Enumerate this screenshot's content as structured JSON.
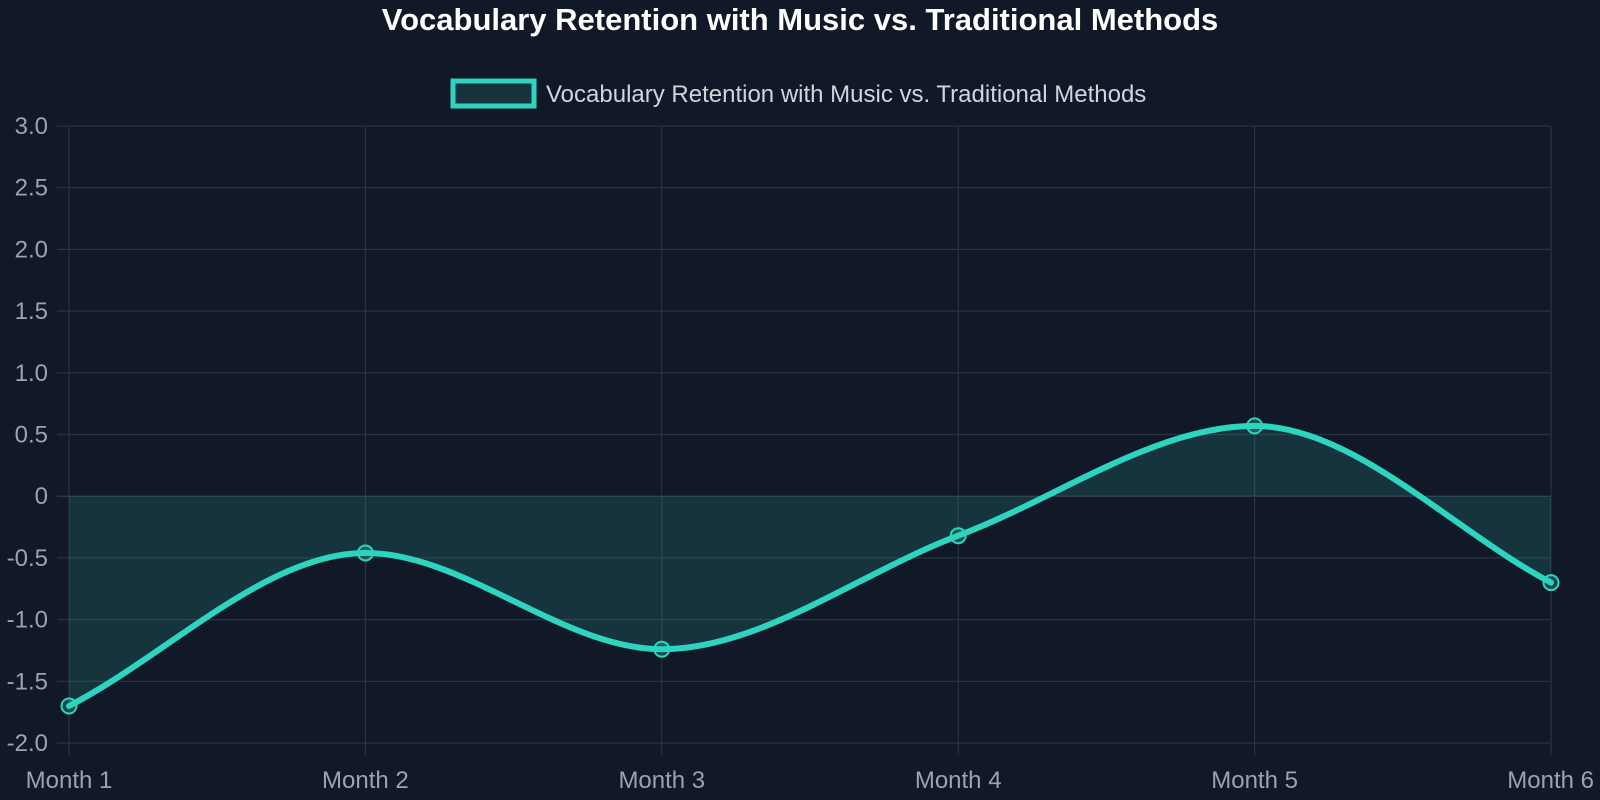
{
  "colors": {
    "background": "#111827",
    "title": "#ffffff",
    "text": "#9ca3af",
    "legend_text": "#d1d5db",
    "grid": "#2a3342",
    "zero_line": "#374151",
    "series_line": "#2dd4bf",
    "series_fill": "rgba(45, 212, 191, 0.15)",
    "marker_fill": "rgba(45, 212, 191, 0.25)"
  },
  "chart_data": {
    "type": "area",
    "title": "Vocabulary Retention with Music vs. Traditional Methods",
    "xlabel": "",
    "ylabel": "",
    "categories": [
      "Month 1",
      "Month 2",
      "Month 3",
      "Month 4",
      "Month 5",
      "Month 6"
    ],
    "series": [
      {
        "name": "Vocabulary Retention with Music vs. Traditional Methods",
        "values": [
          -1.7,
          -0.46,
          -1.24,
          -0.32,
          0.57,
          -0.7
        ]
      }
    ],
    "ylim": [
      -2.0,
      3.0
    ],
    "yticks": [
      "3.0",
      "2.5",
      "2.0",
      "1.5",
      "1.0",
      "0.5",
      "0",
      "-0.5",
      "-1.0",
      "-1.5",
      "-2.0"
    ],
    "ytick_values": [
      3.0,
      2.5,
      2.0,
      1.5,
      1.0,
      0.5,
      0,
      -0.5,
      -1.0,
      -1.5,
      -2.0
    ],
    "grid": true,
    "legend_position": "top-center",
    "fill": "origin",
    "smooth": true
  }
}
